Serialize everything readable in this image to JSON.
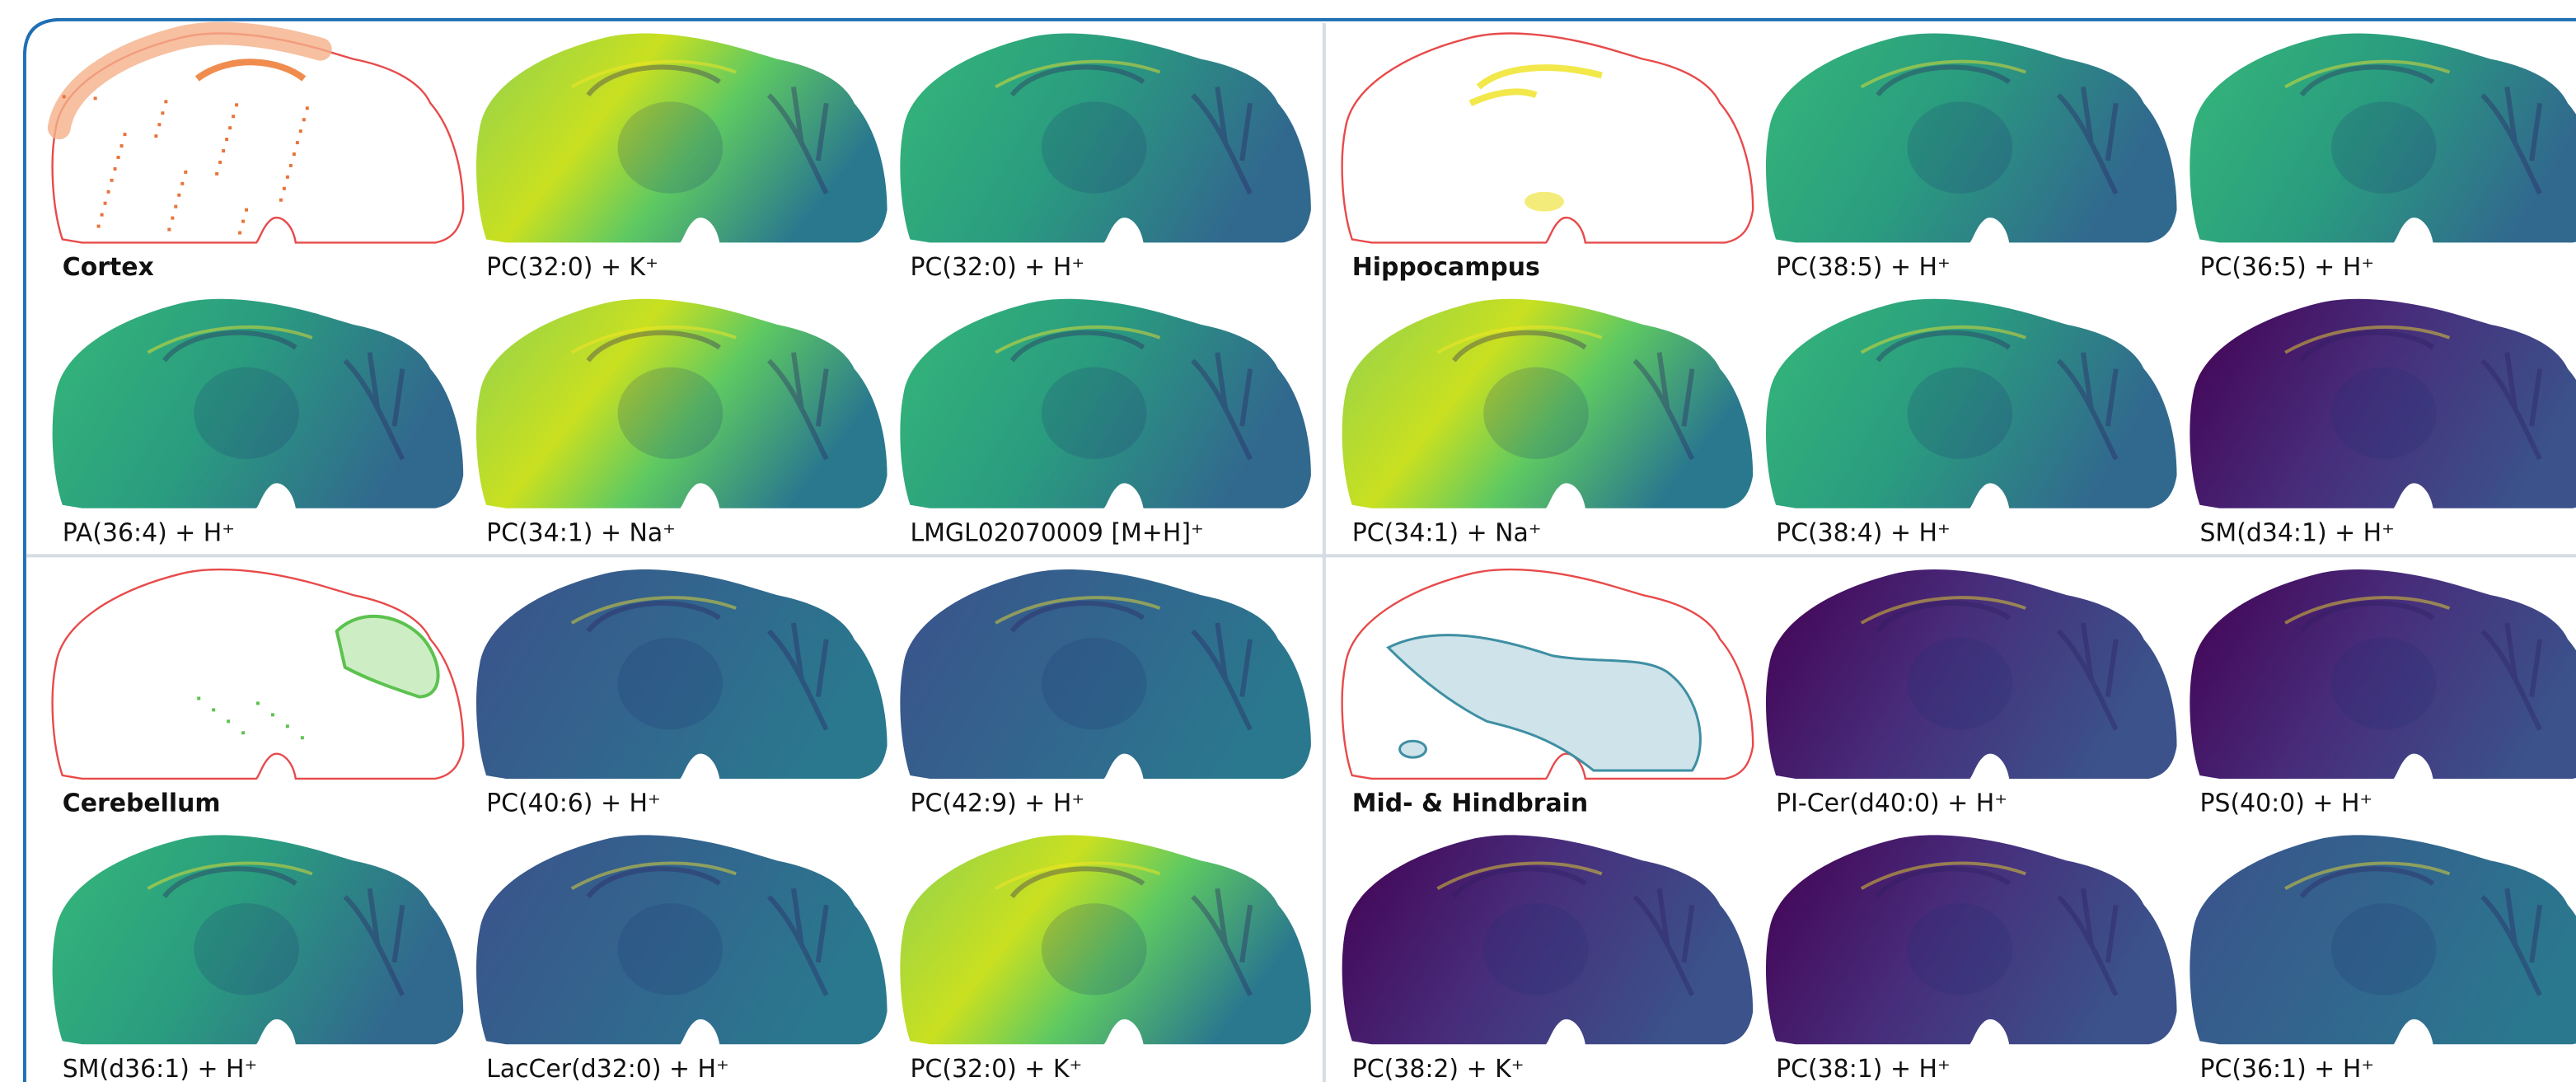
{
  "quadrants": [
    {
      "region": "Cortex",
      "labels": [
        "PC(32:0) + K⁺",
        "PC(32:0) + H⁺",
        "PA(36:4) + H⁺",
        "PC(34:1) + Na⁺",
        "LMGL02070009 [M+H]⁺"
      ]
    },
    {
      "region": "Hippocampus",
      "labels": [
        "PC(38:5) + H⁺",
        "PC(36:5) + H⁺",
        "PC(34:1) + Na⁺",
        "PC(38:4) + H⁺",
        "SM(d34:1) + H⁺"
      ]
    },
    {
      "region": "Cerebellum",
      "labels": [
        "PC(40:6) + H⁺",
        "PC(42:9) + H⁺",
        "SM(d36:1) + H⁺",
        "LacCer(d32:0) + H⁺",
        "PC(32:0) + K⁺"
      ]
    },
    {
      "region": "Mid- & Hindbrain",
      "labels": [
        "PI-Cer(d40:0) + H⁺",
        "PS(40:0) + H⁺",
        "PC(38:2) + K⁺",
        "PC(38:1) + H⁺",
        "PC(36:1) + H⁺"
      ]
    }
  ]
}
